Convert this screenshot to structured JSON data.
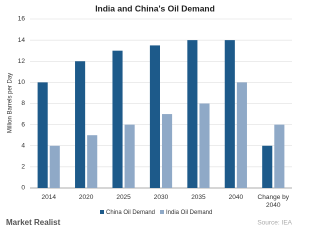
{
  "chart_data": {
    "type": "bar",
    "title": "India and China's Oil Demand",
    "y_label": "Million Barrels per Day",
    "categories": [
      "2014",
      "2020",
      "2025",
      "2030",
      "2035",
      "2040",
      "Change by 2040"
    ],
    "series": [
      {
        "name": "China Oil Demand",
        "color": "#1d5a8a",
        "values": [
          10,
          12,
          13,
          13.5,
          14,
          14,
          4
        ]
      },
      {
        "name": "India Oil Demand",
        "color": "#8fa9c7",
        "values": [
          4,
          5,
          6,
          7,
          8,
          10,
          6
        ]
      }
    ],
    "ylim": [
      0,
      16
    ],
    "yticks": [
      0,
      2,
      4,
      6,
      8,
      10,
      12,
      14,
      16
    ],
    "grid": true,
    "source": "Source: IEA",
    "logo": "Market Realist"
  }
}
